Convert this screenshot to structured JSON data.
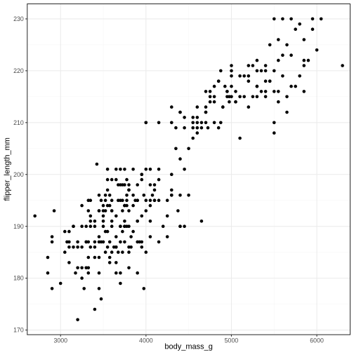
{
  "chart_data": {
    "type": "scatter",
    "xlabel": "body_mass_g",
    "ylabel": "flipper_length_mm",
    "xlim": [
      2610,
      6390
    ],
    "ylim": [
      169.1,
      232.9
    ],
    "x_ticks": [
      3000,
      4000,
      5000,
      6000
    ],
    "x_tick_labels": [
      "3000",
      "4000",
      "5000",
      "6000"
    ],
    "y_ticks": [
      170,
      180,
      190,
      200,
      210,
      220,
      230
    ],
    "y_tick_labels": [
      "170",
      "180",
      "190",
      "200",
      "210",
      "220",
      "230"
    ],
    "grid": true,
    "legend": "none",
    "colors": {
      "points": "#000000",
      "grid_major": "#ebebeb",
      "grid_minor": "#f5f5f5",
      "panel_border": "#333333",
      "axis_text": "#4d4d4d",
      "axis_title": "#000000"
    },
    "points": [
      [
        2700,
        192
      ],
      [
        2850,
        184
      ],
      [
        2850,
        181
      ],
      [
        2900,
        178
      ],
      [
        2900,
        187
      ],
      [
        2900,
        188
      ],
      [
        2925,
        193
      ],
      [
        3000,
        179
      ],
      [
        3050,
        189
      ],
      [
        3050,
        185
      ],
      [
        3075,
        187
      ],
      [
        3100,
        189
      ],
      [
        3150,
        190
      ],
      [
        3100,
        186
      ],
      [
        3100,
        183
      ],
      [
        3150,
        186
      ],
      [
        3175,
        181
      ],
      [
        3200,
        182
      ],
      [
        3200,
        172
      ],
      [
        3200,
        187
      ],
      [
        3250,
        186
      ],
      [
        3250,
        180
      ],
      [
        3275,
        178
      ],
      [
        3300,
        187
      ],
      [
        3300,
        190
      ],
      [
        3325,
        181
      ],
      [
        3325,
        195
      ],
      [
        3350,
        190
      ],
      [
        3350,
        191
      ],
      [
        3350,
        195
      ],
      [
        3400,
        187
      ],
      [
        3400,
        190
      ],
      [
        3400,
        174
      ],
      [
        3425,
        202
      ],
      [
        3450,
        193
      ],
      [
        3450,
        184
      ],
      [
        3450,
        187
      ],
      [
        3450,
        196
      ],
      [
        3475,
        176
      ],
      [
        3500,
        191
      ],
      [
        3500,
        193
      ],
      [
        3500,
        194
      ],
      [
        3500,
        187
      ],
      [
        3525,
        196
      ],
      [
        3550,
        189
      ],
      [
        3550,
        197
      ],
      [
        3575,
        187
      ],
      [
        3600,
        195
      ],
      [
        3600,
        190
      ],
      [
        3600,
        193
      ],
      [
        3625,
        186
      ],
      [
        3650,
        183
      ],
      [
        3650,
        188
      ],
      [
        3650,
        181
      ],
      [
        3675,
        185
      ],
      [
        3700,
        190
      ],
      [
        3700,
        187
      ],
      [
        3700,
        195
      ],
      [
        3700,
        181
      ],
      [
        3725,
        198
      ],
      [
        3725,
        185
      ],
      [
        3750,
        194
      ],
      [
        3750,
        190
      ],
      [
        3775,
        196
      ],
      [
        3775,
        190
      ],
      [
        3800,
        186
      ],
      [
        3800,
        193
      ],
      [
        3800,
        197
      ],
      [
        3800,
        185
      ],
      [
        3825,
        188
      ],
      [
        3850,
        194
      ],
      [
        3850,
        201
      ],
      [
        3875,
        195
      ],
      [
        3900,
        181
      ],
      [
        3900,
        198
      ],
      [
        3900,
        191
      ],
      [
        3925,
        187
      ],
      [
        3950,
        192
      ],
      [
        3950,
        186
      ],
      [
        3975,
        178
      ],
      [
        4000,
        195
      ],
      [
        4000,
        193
      ],
      [
        4000,
        185
      ],
      [
        4050,
        198
      ],
      [
        4050,
        188
      ],
      [
        4075,
        196
      ],
      [
        4100,
        197
      ],
      [
        4150,
        201
      ],
      [
        4150,
        199
      ],
      [
        4200,
        190
      ],
      [
        4250,
        195
      ],
      [
        4300,
        197
      ],
      [
        4350,
        209
      ],
      [
        4375,
        193
      ],
      [
        4400,
        190
      ],
      [
        4450,
        201
      ],
      [
        4500,
        196
      ],
      [
        4550,
        209
      ],
      [
        4600,
        210
      ],
      [
        4650,
        191
      ],
      [
        4700,
        212
      ],
      [
        4725,
        209
      ],
      [
        4750,
        214
      ],
      [
        4800,
        215
      ],
      [
        4850,
        218
      ],
      [
        4875,
        210
      ],
      [
        4900,
        213
      ],
      [
        4950,
        215
      ],
      [
        4975,
        214
      ],
      [
        5000,
        217
      ],
      [
        5050,
        216
      ],
      [
        5100,
        207
      ],
      [
        5150,
        219
      ],
      [
        5200,
        213
      ],
      [
        5250,
        221
      ],
      [
        5300,
        222
      ],
      [
        5350,
        216
      ],
      [
        5400,
        218
      ],
      [
        5450,
        225
      ],
      [
        5500,
        230
      ],
      [
        5550,
        214
      ],
      [
        5600,
        223
      ],
      [
        5650,
        212
      ],
      [
        5700,
        223
      ],
      [
        5750,
        228
      ],
      [
        5800,
        229
      ],
      [
        5850,
        222
      ],
      [
        5900,
        222
      ],
      [
        5950,
        228
      ],
      [
        6000,
        224
      ],
      [
        6050,
        230
      ],
      [
        6300,
        221
      ],
      [
        3100,
        187
      ],
      [
        3325,
        187
      ],
      [
        3575,
        194
      ],
      [
        3675,
        198
      ],
      [
        3825,
        186
      ],
      [
        3325,
        184
      ],
      [
        3550,
        199
      ],
      [
        3700,
        179
      ],
      [
        3450,
        188
      ],
      [
        3300,
        182
      ],
      [
        3150,
        190
      ],
      [
        3200,
        186
      ],
      [
        3600,
        185
      ],
      [
        3525,
        185
      ],
      [
        3750,
        198
      ],
      [
        3400,
        191
      ],
      [
        3650,
        186
      ],
      [
        3850,
        189
      ],
      [
        3450,
        178
      ],
      [
        3900,
        187
      ],
      [
        3675,
        195
      ],
      [
        3250,
        190
      ],
      [
        3475,
        195
      ],
      [
        3800,
        190
      ],
      [
        3775,
        199
      ],
      [
        3700,
        190
      ],
      [
        3900,
        195
      ],
      [
        3325,
        193
      ],
      [
        3600,
        199
      ],
      [
        3350,
        192
      ],
      [
        3400,
        186
      ],
      [
        3525,
        189
      ],
      [
        3750,
        187
      ],
      [
        3950,
        200
      ],
      [
        4050,
        195
      ],
      [
        4300,
        200
      ],
      [
        4400,
        196
      ],
      [
        4100,
        198
      ],
      [
        4250,
        188
      ],
      [
        4150,
        187
      ],
      [
        4050,
        194
      ],
      [
        4450,
        190
      ],
      [
        4000,
        210
      ],
      [
        4150,
        195
      ],
      [
        4400,
        190
      ],
      [
        3950,
        187
      ],
      [
        3800,
        182
      ],
      [
        3900,
        191
      ],
      [
        4300,
        196
      ],
      [
        3700,
        201
      ],
      [
        3850,
        196
      ],
      [
        4100,
        195
      ],
      [
        4050,
        191
      ],
      [
        3575,
        184
      ],
      [
        3550,
        201
      ],
      [
        3725,
        195
      ],
      [
        3975,
        196
      ],
      [
        3775,
        195
      ],
      [
        3525,
        195
      ],
      [
        3450,
        181
      ],
      [
        3650,
        199
      ],
      [
        3750,
        194
      ],
      [
        3575,
        196
      ],
      [
        3500,
        190
      ],
      [
        3325,
        182
      ],
      [
        4300,
        196
      ],
      [
        3750,
        201
      ],
      [
        3450,
        193
      ],
      [
        4250,
        192
      ],
      [
        4100,
        195
      ],
      [
        4000,
        210
      ],
      [
        4150,
        210
      ],
      [
        4300,
        213
      ],
      [
        4450,
        209
      ],
      [
        4450,
        211
      ],
      [
        4700,
        213
      ],
      [
        4300,
        210
      ],
      [
        4950,
        216
      ],
      [
        4600,
        208
      ],
      [
        4750,
        215
      ],
      [
        4600,
        211
      ],
      [
        4800,
        217
      ],
      [
        4650,
        209
      ],
      [
        5000,
        221
      ],
      [
        5000,
        220
      ],
      [
        4900,
        213
      ],
      [
        4750,
        216
      ],
      [
        4850,
        218
      ],
      [
        4400,
        203
      ],
      [
        4350,
        205
      ],
      [
        4550,
        210
      ],
      [
        4600,
        213
      ],
      [
        4875,
        220
      ],
      [
        5100,
        219
      ],
      [
        4975,
        215
      ],
      [
        5050,
        214
      ],
      [
        5200,
        219
      ],
      [
        5300,
        215
      ],
      [
        5450,
        218
      ],
      [
        5550,
        226
      ],
      [
        5700,
        217
      ],
      [
        5850,
        226
      ],
      [
        5400,
        221
      ],
      [
        5650,
        215
      ],
      [
        5600,
        219
      ],
      [
        5300,
        220
      ],
      [
        5500,
        210
      ],
      [
        5850,
        216
      ],
      [
        5650,
        225
      ],
      [
        5750,
        217
      ],
      [
        5950,
        230
      ],
      [
        5400,
        215
      ],
      [
        5800,
        219
      ],
      [
        5550,
        222
      ],
      [
        5500,
        220
      ],
      [
        5700,
        230
      ],
      [
        5600,
        230
      ],
      [
        5350,
        220
      ],
      [
        5200,
        218
      ],
      [
        5100,
        215
      ],
      [
        5500,
        208
      ],
      [
        4700,
        210
      ],
      [
        4800,
        210
      ],
      [
        4400,
        212
      ],
      [
        4550,
        207
      ],
      [
        4650,
        210
      ],
      [
        4950,
        216
      ],
      [
        4700,
        216
      ],
      [
        4925,
        217
      ],
      [
        4800,
        214
      ],
      [
        4400,
        212
      ],
      [
        4500,
        205
      ],
      [
        4550,
        211
      ],
      [
        5050,
        214
      ],
      [
        5150,
        215
      ],
      [
        5250,
        215
      ],
      [
        5000,
        215
      ],
      [
        5450,
        218
      ],
      [
        5550,
        216
      ],
      [
        5300,
        217
      ],
      [
        5400,
        220
      ],
      [
        5200,
        221
      ],
      [
        5850,
        221
      ],
      [
        5000,
        219
      ],
      [
        5500,
        216
      ],
      [
        4700,
        212
      ],
      [
        4850,
        209
      ],
      [
        4600,
        209
      ],
      [
        5300,
        217
      ],
      [
        5400,
        216
      ],
      [
        3650,
        186
      ],
      [
        3950,
        199
      ],
      [
        3600,
        193
      ],
      [
        3550,
        194
      ],
      [
        3800,
        197
      ],
      [
        3800,
        198
      ],
      [
        3700,
        198
      ],
      [
        3650,
        192
      ],
      [
        3900,
        195
      ],
      [
        3725,
        193
      ],
      [
        3300,
        187
      ],
      [
        3525,
        193
      ],
      [
        4000,
        201
      ],
      [
        3600,
        191
      ],
      [
        3475,
        187
      ],
      [
        3500,
        192
      ],
      [
        3575,
        183
      ],
      [
        3750,
        190
      ],
      [
        3650,
        201
      ],
      [
        3250,
        194
      ],
      [
        3725,
        189
      ],
      [
        4050,
        201
      ],
      [
        3800,
        197
      ],
      [
        3550,
        186
      ],
      [
        3950,
        200
      ],
      [
        3750,
        191
      ],
      [
        3350,
        186
      ],
      [
        3250,
        182
      ],
      [
        3400,
        184
      ],
      [
        3775,
        194
      ]
    ]
  }
}
